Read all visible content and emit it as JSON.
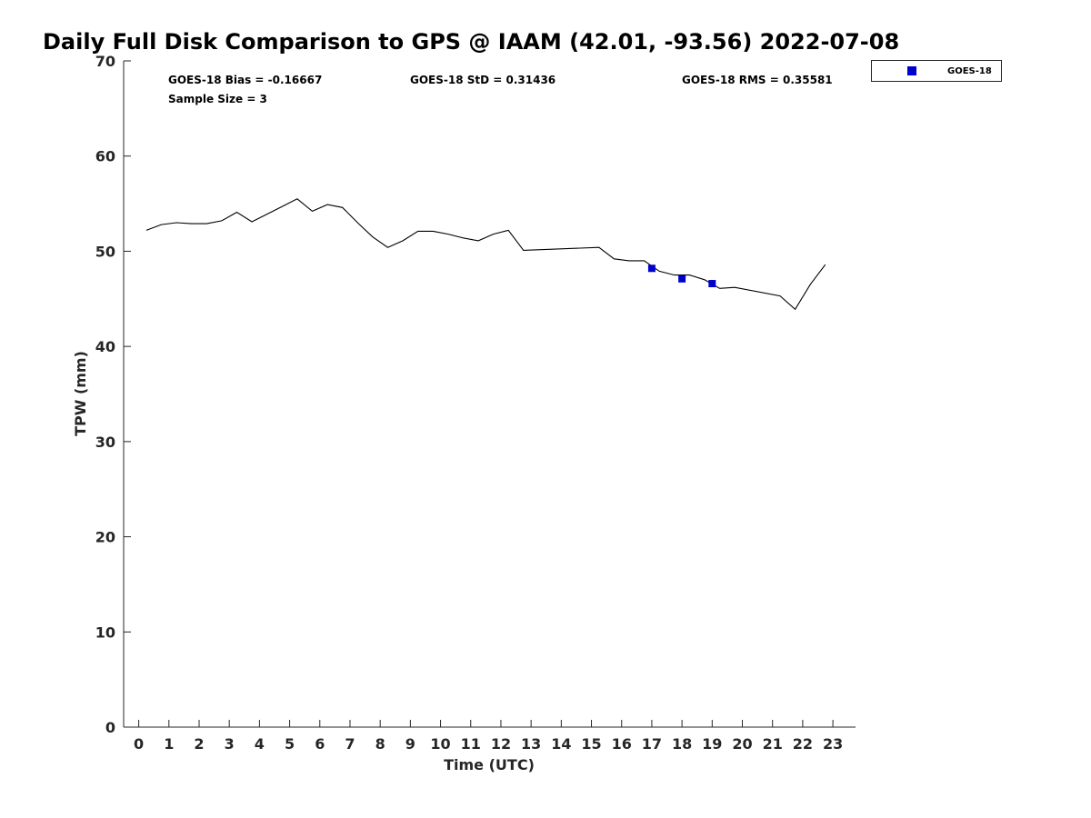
{
  "chart_data": {
    "type": "line",
    "title": "Daily Full Disk Comparison to GPS @ IAAM (42.01, -93.56) 2022-07-08",
    "xlabel": "Time (UTC)",
    "ylabel": "TPW (mm)",
    "xlim": [
      -0.5,
      23.75
    ],
    "ylim": [
      0,
      70
    ],
    "xticks": [
      0,
      1,
      2,
      3,
      4,
      5,
      6,
      7,
      8,
      9,
      10,
      11,
      12,
      13,
      14,
      15,
      16,
      17,
      18,
      19,
      20,
      21,
      22,
      23
    ],
    "yticks": [
      0,
      10,
      20,
      30,
      40,
      50,
      60,
      70
    ],
    "grid": false,
    "line_color": "#000000",
    "marker_color": "#0000cc",
    "gps_series": {
      "name": "GPS",
      "x": [
        0.25,
        0.75,
        1.25,
        1.75,
        2.25,
        2.75,
        3.25,
        3.75,
        4.25,
        4.75,
        5.25,
        5.75,
        6.25,
        6.75,
        7.25,
        7.75,
        8.25,
        8.75,
        9.25,
        9.75,
        10.25,
        10.75,
        11.25,
        11.75,
        12.25,
        12.75,
        15.25,
        15.75,
        16.25,
        16.75,
        17.25,
        17.75,
        18.25,
        18.75,
        19.25,
        19.75,
        21.25,
        21.75,
        22.25,
        22.75
      ],
      "y": [
        52.2,
        52.8,
        53.0,
        52.9,
        52.9,
        53.2,
        54.1,
        53.1,
        53.9,
        54.7,
        55.5,
        54.2,
        54.9,
        54.6,
        53.0,
        51.5,
        50.4,
        51.1,
        52.1,
        52.1,
        51.8,
        51.4,
        51.1,
        51.8,
        52.2,
        50.1,
        50.4,
        49.2,
        49.0,
        49.0,
        47.9,
        47.5,
        47.5,
        47.0,
        46.1,
        46.2,
        45.3,
        43.9,
        46.5,
        48.6
      ]
    },
    "series": [
      {
        "name": "GOES-18",
        "x": [
          17,
          18,
          19
        ],
        "y": [
          48.2,
          47.1,
          46.6
        ]
      }
    ],
    "stats": {
      "bias": "GOES-18 Bias = -0.16667",
      "std": "GOES-18 StD = 0.31436",
      "rms": "GOES-18 RMS = 0.35581",
      "sample": "Sample Size = 3"
    },
    "legend": {
      "position": "top-right",
      "entries": [
        "GOES-18"
      ]
    }
  }
}
